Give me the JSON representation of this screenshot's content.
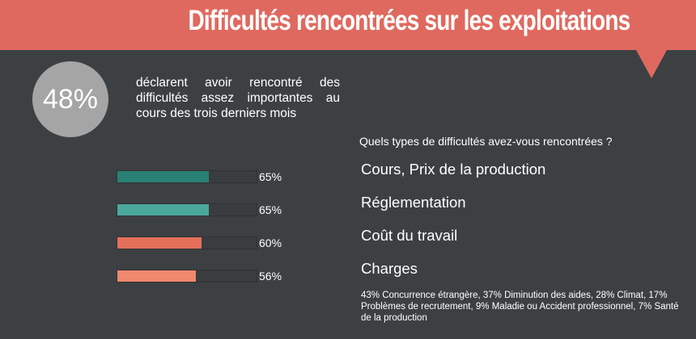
{
  "header": {
    "title": "Difficultés rencontrées sur les exploitations"
  },
  "stat": {
    "percent": "48%",
    "description": "déclarent avoir rencontré des difficultés assez importantes au cours des trois derniers mois"
  },
  "question": "Quels types de difficultés avez-vous rencontrées ?",
  "chart_data": {
    "type": "bar",
    "categories": [
      "Cours, Prix de la production",
      "Réglementation",
      "Coût du travail",
      "Charges"
    ],
    "values": [
      65,
      65,
      60,
      56
    ],
    "value_labels": [
      "65%",
      "65%",
      "60%",
      "56%"
    ],
    "colors": [
      "#2a8073",
      "#4ba89d",
      "#e4705a",
      "#f0886d"
    ],
    "ylim": [
      0,
      100
    ],
    "orientation": "horizontal"
  },
  "footnote": "43% Concurrence étrangère, 37% Diminution des aides, 28% Climat, 17% Problèmes de recrutement, 9% Maladie ou Accident professionnel, 7% Santé de la production",
  "colors": {
    "background": "#3d4043",
    "banner": "#e0695f",
    "circle": "#a5a5a5"
  }
}
